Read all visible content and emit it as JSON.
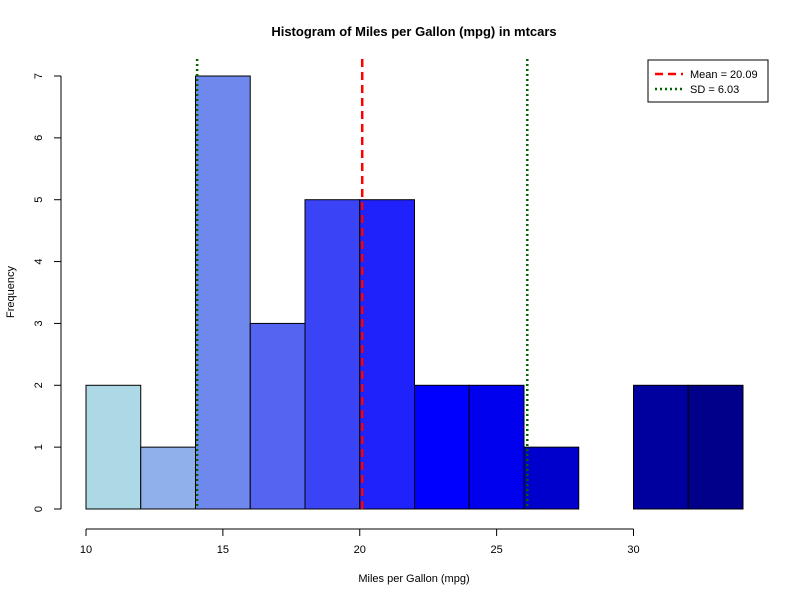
{
  "chart_data": {
    "type": "bar",
    "title": "Histogram of Miles per Gallon (mpg) in mtcars",
    "xlabel": "Miles per Gallon (mpg)",
    "ylabel": "Frequency",
    "bin_edges": [
      10,
      12,
      14,
      16,
      18,
      20,
      22,
      24,
      26,
      28,
      30,
      32,
      34
    ],
    "values": [
      2,
      1,
      7,
      3,
      5,
      5,
      2,
      2,
      1,
      0,
      2,
      2
    ],
    "bar_colors": [
      "#add8e6",
      "#8fb0ea",
      "#6f88ee",
      "#5565f2",
      "#3a44f6",
      "#1f22fa",
      "#0000fe",
      "#0000ee",
      "#0000cd",
      "#0000b9",
      "#00009f",
      "#00008b"
    ],
    "xlim": [
      10,
      34
    ],
    "ylim": [
      0,
      7
    ],
    "xticks": [
      10,
      15,
      20,
      25,
      30
    ],
    "yticks": [
      0,
      1,
      2,
      3,
      4,
      5,
      6,
      7
    ],
    "mean_line": {
      "value": 20.09,
      "color": "#ff0000",
      "style": "dashed"
    },
    "sd_lines": {
      "values": [
        14.06,
        26.12
      ],
      "color": "#006400",
      "style": "dotted"
    },
    "legend": {
      "placement": "top-right",
      "entries": [
        {
          "label": "Mean = 20.09",
          "color": "#ff0000",
          "style": "dashed"
        },
        {
          "label": "SD = 6.03",
          "color": "#006400",
          "style": "dotted"
        }
      ]
    },
    "grid": false
  }
}
